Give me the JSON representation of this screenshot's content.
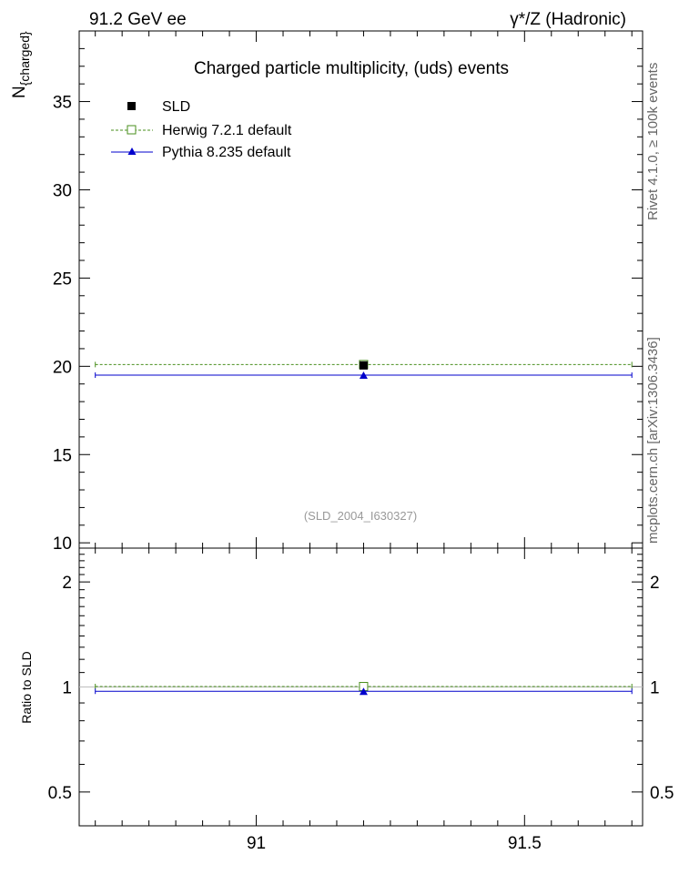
{
  "header": {
    "left": "91.2 GeV ee",
    "right": "γ*/Z (Hadronic)"
  },
  "side_text": {
    "top": "Rivet 4.1.0, ≥ 100k events",
    "bottom": "mcplots.cern.ch [arXiv:1306.3436]"
  },
  "chart_data": [
    {
      "type": "line",
      "panel": "main",
      "title": "Charged particle multiplicity, (uds) events",
      "ylabel_main": "N",
      "ylabel_sub": "{charged}",
      "xlim": [
        90.67,
        91.72
      ],
      "ylim": [
        9.7,
        39
      ],
      "yticks": [
        10,
        15,
        20,
        25,
        30,
        35
      ],
      "ytick_labels": [
        "10",
        "15",
        "20",
        "25",
        "30",
        "35"
      ],
      "watermark": "(SLD_2004_I630327)",
      "legend_position": "top-left",
      "series": [
        {
          "name": "SLD",
          "color": "#000000",
          "marker": "filled-square",
          "x": 91.2,
          "y": 20.05,
          "yerr": 0.15
        },
        {
          "name": "Herwig 7.2.1 default",
          "color": "#4a8f1e",
          "marker": "open-square",
          "dashed": true,
          "x": 91.2,
          "y": 20.1,
          "xlow": 90.7,
          "xhigh": 91.7
        },
        {
          "name": "Pythia 8.235 default",
          "color": "#0000cc",
          "marker": "triangle",
          "dashed": false,
          "x": 91.2,
          "y": 19.5,
          "xlow": 90.7,
          "xhigh": 91.7
        }
      ]
    },
    {
      "type": "line",
      "panel": "ratio",
      "ylabel": "Ratio to SLD",
      "log_scale": true,
      "xlim": [
        90.67,
        91.72
      ],
      "ylim": [
        0.4,
        2.5
      ],
      "yticks": [
        0.5,
        1,
        2
      ],
      "ytick_labels": [
        "0.5",
        "1",
        "2"
      ],
      "xticks": [
        91,
        91.5
      ],
      "xtick_labels": [
        "91",
        "91.5"
      ],
      "series": [
        {
          "name": "Herwig 7.2.1 default",
          "color": "#4a8f1e",
          "marker": "open-square",
          "dashed": true,
          "x": 91.2,
          "y": 1.003,
          "xlow": 90.7,
          "xhigh": 91.7
        },
        {
          "name": "Pythia 8.235 default",
          "color": "#0000cc",
          "marker": "triangle",
          "dashed": false,
          "x": 91.2,
          "y": 0.972,
          "xlow": 90.7,
          "xhigh": 91.7
        }
      ]
    }
  ]
}
